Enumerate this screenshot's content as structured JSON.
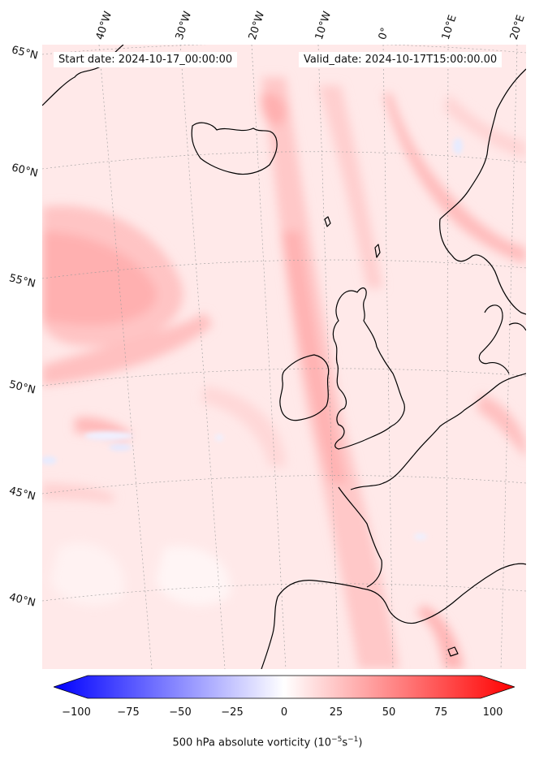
{
  "header": {
    "start_date": "Start date: 2024-10-17_00:00:00",
    "valid_date": "Valid_date: 2024-10-17T15:00:00.00"
  },
  "lat_labels": [
    "65°N",
    "60°N",
    "55°N",
    "50°N",
    "45°N",
    "40°N"
  ],
  "lon_labels": [
    "40°W",
    "30°W",
    "20°W",
    "10°W",
    "0°",
    "10°E",
    "20°E"
  ],
  "colorbar": {
    "ticks": [
      "−100",
      "−75",
      "−50",
      "−25",
      "0",
      "25",
      "50",
      "75",
      "100"
    ],
    "label_prefix": "500 hPa absolute vorticity (10",
    "label_sup1": "−5",
    "label_mid": "s",
    "label_sup2": "−1",
    "label_suffix": ")",
    "min_color": "#0000ff",
    "mid_color": "#ffffff",
    "max_color": "#ff0000"
  }
}
